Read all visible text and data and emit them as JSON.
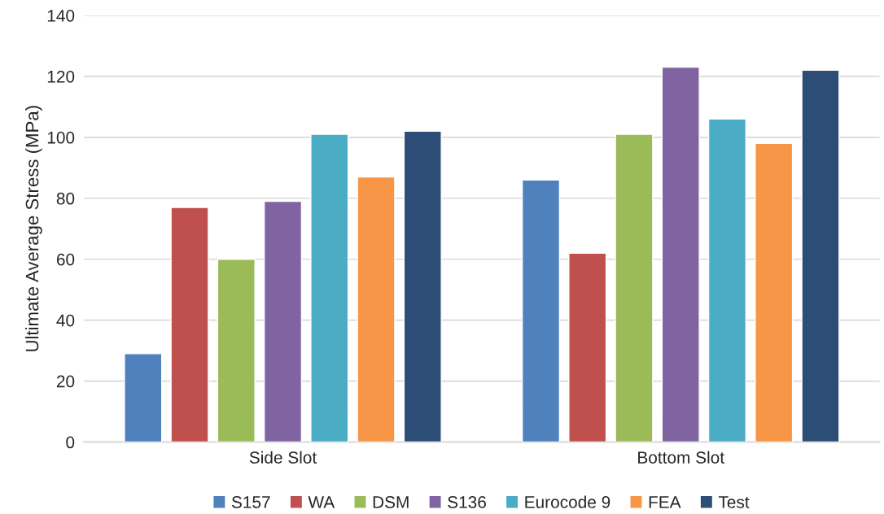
{
  "chart_data": {
    "type": "bar",
    "ylabel": "Ultimate Average Stress (MPa)",
    "categories": [
      "Side Slot",
      "Bottom Slot"
    ],
    "series": [
      {
        "name": "S157",
        "color": "#4f81bd",
        "values": [
          29,
          86
        ]
      },
      {
        "name": "WA",
        "color": "#c0504d",
        "values": [
          77,
          62
        ]
      },
      {
        "name": "DSM",
        "color": "#9bbb59",
        "values": [
          60,
          101
        ]
      },
      {
        "name": "S136",
        "color": "#8064a2",
        "values": [
          79,
          123
        ]
      },
      {
        "name": "Eurocode 9",
        "color": "#4bacc6",
        "values": [
          101,
          106
        ]
      },
      {
        "name": "FEA",
        "color": "#f79646",
        "values": [
          87,
          98
        ]
      },
      {
        "name": "Test",
        "color": "#2c4d75",
        "values": [
          102,
          122
        ]
      }
    ],
    "ylim": [
      0,
      140
    ],
    "yticks": [
      0,
      20,
      40,
      60,
      80,
      100,
      120,
      140
    ],
    "grid": "y",
    "legend": "bottom"
  }
}
